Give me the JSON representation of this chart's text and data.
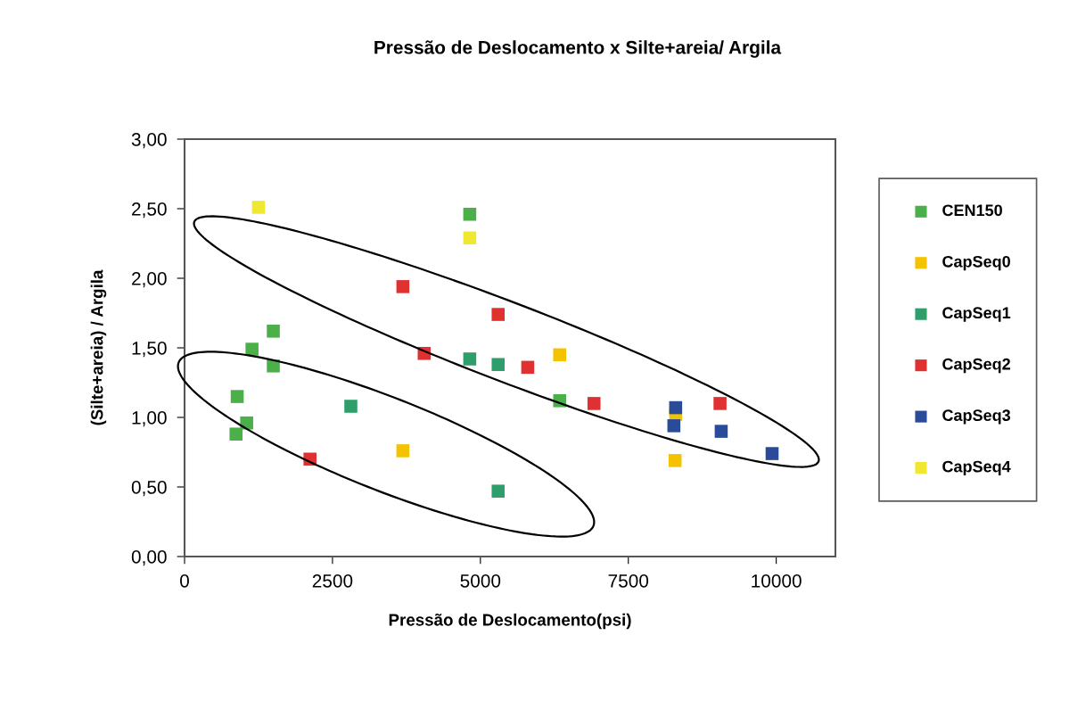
{
  "chart_data": {
    "type": "scatter",
    "title": "Pressão de Deslocamento x Silte+areia/ Argila",
    "xlabel": "Pressão de Deslocamento(psi)",
    "ylabel": "(Silte+areia) / Argila",
    "xlim": [
      0,
      11000
    ],
    "xticks": [
      0,
      2500,
      5000,
      7500,
      10000
    ],
    "ylim": [
      0,
      3
    ],
    "yticks": [
      {
        "value": 0,
        "label": "0,00"
      },
      {
        "value": 0.5,
        "label": "0,50"
      },
      {
        "value": 1,
        "label": "1,00"
      },
      {
        "value": 1.5,
        "label": "1,50"
      },
      {
        "value": 2,
        "label": "2,00"
      },
      {
        "value": 2.5,
        "label": "2,50"
      },
      {
        "value": 3,
        "label": "3,00"
      }
    ],
    "marker": "square",
    "legend": "right",
    "grid": false,
    "series": [
      {
        "name": "CEN150",
        "color": "#4cb04a",
        "x": [
          890,
          870,
          1050,
          1140,
          1500,
          1500,
          4820,
          6340
        ],
        "values": [
          1.15,
          0.88,
          0.96,
          1.49,
          1.62,
          1.37,
          2.46,
          1.12
        ]
      },
      {
        "name": "CapSeq0",
        "color": "#f5c200",
        "x": [
          3690,
          6340,
          8290,
          8300
        ],
        "values": [
          0.76,
          1.45,
          0.69,
          1.02
        ]
      },
      {
        "name": "CapSeq1",
        "color": "#2e9e6a",
        "x": [
          2810,
          4820,
          5300,
          5300
        ],
        "values": [
          1.08,
          1.42,
          1.38,
          0.47
        ]
      },
      {
        "name": "CapSeq2",
        "color": "#e03030",
        "x": [
          2120,
          3690,
          4050,
          5300,
          5800,
          6920,
          9050
        ],
        "values": [
          0.7,
          1.94,
          1.46,
          1.74,
          1.36,
          1.1,
          1.1
        ]
      },
      {
        "name": "CapSeq3",
        "color": "#2a4a9a",
        "x": [
          8300,
          8270,
          9070,
          9930
        ],
        "values": [
          1.07,
          0.94,
          0.9,
          0.74
        ]
      },
      {
        "name": "CapSeq4",
        "color": "#f0e830",
        "x": [
          1250,
          4820
        ],
        "values": [
          2.51,
          2.29
        ]
      }
    ]
  }
}
